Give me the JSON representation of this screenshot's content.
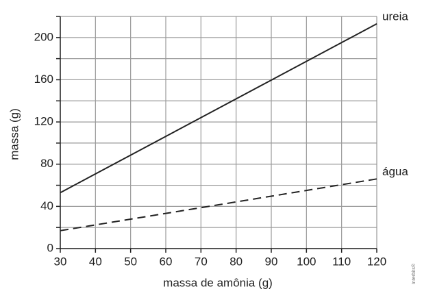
{
  "chart_data": {
    "type": "line",
    "x_label": "massa de amônia (g)",
    "y_label": "massa (g)",
    "x": [
      30,
      120
    ],
    "series": [
      {
        "name": "ureia",
        "color": "#222222",
        "style": "solid",
        "values": [
          53,
          213
        ]
      },
      {
        "name": "água",
        "color": "#222222",
        "style": "dashed",
        "values": [
          17,
          66
        ]
      }
    ],
    "xlim": [
      30,
      120
    ],
    "xticks": [
      30,
      40,
      50,
      60,
      70,
      80,
      90,
      100,
      110,
      120
    ],
    "ylim": [
      0,
      220
    ],
    "yticks": [
      0,
      40,
      80,
      120,
      160,
      200
    ],
    "y_minor_ticks": [
      20,
      60,
      100,
      140,
      180,
      220
    ],
    "grid": true,
    "credit": "Interbits®"
  }
}
